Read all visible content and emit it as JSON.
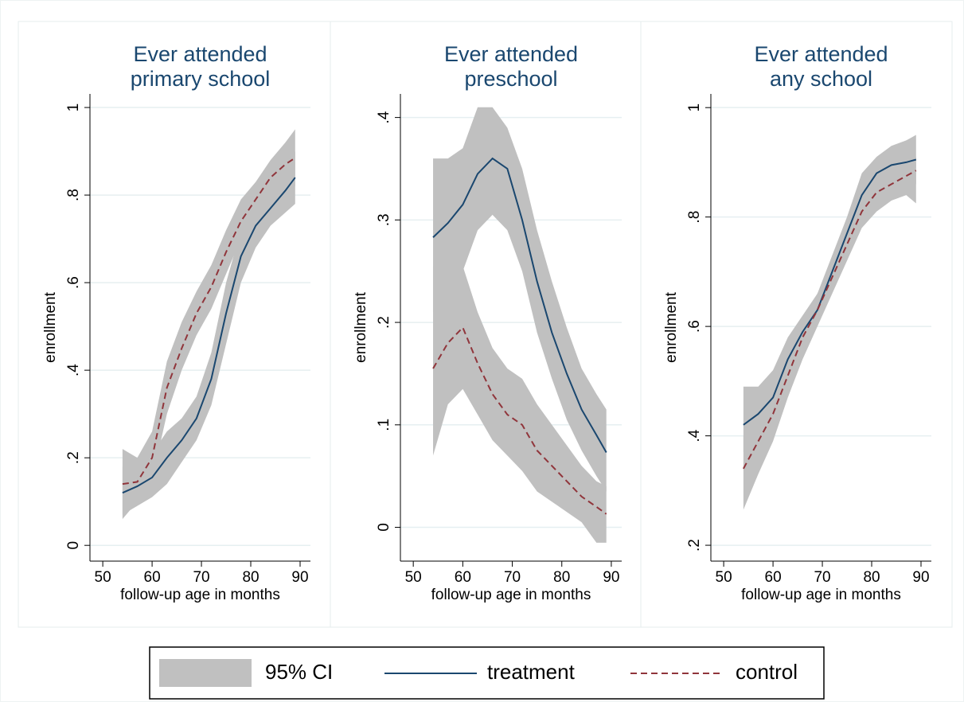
{
  "chart_data": [
    {
      "type": "line",
      "title": [
        "Ever attended",
        "primary school"
      ],
      "x_label": "follow-up age in months",
      "y_label": "enrollment",
      "ci_name": "95% CI",
      "ci_color": "#c0c0c0",
      "x": [
        54,
        57,
        60,
        63,
        66,
        69,
        72,
        75,
        78,
        81,
        84,
        87,
        89
      ],
      "series": [
        {
          "name": "treatment",
          "color": "#1a476f",
          "dash": false,
          "values": [
            0.12,
            0.135,
            0.155,
            0.2,
            0.24,
            0.29,
            0.38,
            0.53,
            0.66,
            0.73,
            0.77,
            0.81,
            0.84
          ],
          "ci_lower": [
            0.07,
            0.09,
            0.11,
            0.14,
            0.19,
            0.24,
            0.32,
            0.46,
            0.6,
            0.68,
            0.73,
            0.76,
            0.78
          ],
          "ci_upper": [
            0.18,
            0.19,
            0.21,
            0.26,
            0.29,
            0.34,
            0.44,
            0.6,
            0.72,
            0.78,
            0.82,
            0.86,
            0.9
          ]
        },
        {
          "name": "control",
          "color": "#90353b",
          "dash": true,
          "values": [
            0.14,
            0.145,
            0.2,
            0.36,
            0.45,
            0.53,
            0.59,
            0.67,
            0.74,
            0.79,
            0.84,
            0.87,
            0.885
          ],
          "ci_lower": [
            0.06,
            0.1,
            0.15,
            0.3,
            0.4,
            0.48,
            0.54,
            0.62,
            0.7,
            0.76,
            0.8,
            0.82,
            0.82
          ],
          "ci_upper": [
            0.22,
            0.2,
            0.26,
            0.42,
            0.51,
            0.58,
            0.64,
            0.72,
            0.79,
            0.83,
            0.88,
            0.92,
            0.95
          ]
        }
      ],
      "xlim": [
        47.4,
        92.1
      ],
      "xticks": [
        50,
        60,
        70,
        80,
        90
      ],
      "ylim": [
        -0.036,
        1.031
      ],
      "yticks": [
        0,
        {
          "value": 0.2,
          "label": ".2"
        },
        {
          "value": 0.4,
          "label": ".4"
        },
        {
          "value": 0.6,
          "label": ".6"
        },
        {
          "value": 0.8,
          "label": ".8"
        },
        1
      ],
      "grid": true
    },
    {
      "type": "line",
      "title": [
        "Ever attended",
        "preschool"
      ],
      "x_label": "follow-up age in months",
      "y_label": "enrollment",
      "ci_name": "95% CI",
      "ci_color": "#c0c0c0",
      "x": [
        54,
        57,
        60,
        63,
        66,
        69,
        72,
        75,
        78,
        81,
        84,
        87,
        89
      ],
      "series": [
        {
          "name": "treatment",
          "color": "#1a476f",
          "dash": false,
          "values": [
            0.283,
            0.297,
            0.315,
            0.345,
            0.36,
            0.35,
            0.3,
            0.24,
            0.19,
            0.15,
            0.115,
            0.09,
            0.073
          ],
          "ci_lower": [
            0.21,
            0.23,
            0.25,
            0.29,
            0.305,
            0.29,
            0.25,
            0.19,
            0.145,
            0.105,
            0.075,
            0.05,
            0.035
          ],
          "ci_upper": [
            0.36,
            0.36,
            0.37,
            0.41,
            0.41,
            0.39,
            0.35,
            0.29,
            0.24,
            0.195,
            0.155,
            0.13,
            0.115
          ]
        },
        {
          "name": "control",
          "color": "#90353b",
          "dash": true,
          "values": [
            0.155,
            0.18,
            0.195,
            0.16,
            0.13,
            0.11,
            0.1,
            0.075,
            0.06,
            0.045,
            0.03,
            0.02,
            0.013
          ],
          "ci_lower": [
            0.07,
            0.12,
            0.135,
            0.11,
            0.085,
            0.07,
            0.055,
            0.035,
            0.025,
            0.015,
            0.005,
            -0.015,
            -0.015
          ],
          "ci_upper": [
            0.255,
            0.24,
            0.255,
            0.21,
            0.175,
            0.155,
            0.145,
            0.12,
            0.1,
            0.08,
            0.06,
            0.045,
            0.04
          ]
        }
      ],
      "xlim": [
        47.4,
        92.1
      ],
      "xticks": [
        50,
        60,
        70,
        80,
        90
      ],
      "ylim": [
        -0.033,
        0.423
      ],
      "yticks": [
        0,
        {
          "value": 0.1,
          "label": ".1"
        },
        {
          "value": 0.2,
          "label": ".2"
        },
        {
          "value": 0.3,
          "label": ".3"
        },
        {
          "value": 0.4,
          "label": ".4"
        }
      ],
      "grid": true
    },
    {
      "type": "line",
      "title": [
        "Ever attended",
        "any school"
      ],
      "x_label": "follow-up age in months",
      "y_label": "enrollment",
      "ci_name": "95% CI",
      "ci_color": "#c0c0c0",
      "x": [
        54,
        57,
        60,
        63,
        66,
        69,
        72,
        75,
        78,
        81,
        84,
        87,
        89
      ],
      "series": [
        {
          "name": "treatment",
          "color": "#1a476f",
          "dash": false,
          "values": [
            0.42,
            0.44,
            0.47,
            0.54,
            0.59,
            0.63,
            0.7,
            0.77,
            0.84,
            0.88,
            0.895,
            0.9,
            0.905
          ],
          "ci_lower": [
            0.37,
            0.39,
            0.43,
            0.5,
            0.56,
            0.61,
            0.67,
            0.74,
            0.8,
            0.84,
            0.855,
            0.86,
            0.86
          ],
          "ci_upper": [
            0.49,
            0.49,
            0.52,
            0.58,
            0.62,
            0.66,
            0.73,
            0.8,
            0.88,
            0.91,
            0.93,
            0.94,
            0.95
          ]
        },
        {
          "name": "control",
          "color": "#90353b",
          "dash": true,
          "values": [
            0.34,
            0.39,
            0.44,
            0.51,
            0.58,
            0.63,
            0.69,
            0.75,
            0.81,
            0.845,
            0.86,
            0.875,
            0.885
          ],
          "ci_lower": [
            0.265,
            0.33,
            0.39,
            0.47,
            0.54,
            0.6,
            0.66,
            0.72,
            0.78,
            0.81,
            0.83,
            0.84,
            0.825
          ],
          "ci_upper": [
            0.4,
            0.44,
            0.49,
            0.55,
            0.61,
            0.66,
            0.72,
            0.78,
            0.84,
            0.875,
            0.89,
            0.905,
            0.91
          ]
        }
      ],
      "xlim": [
        47.4,
        92.1
      ],
      "xticks": [
        50,
        60,
        70,
        80,
        90
      ],
      "ylim": [
        0.171,
        1.025
      ],
      "yticks": [
        {
          "value": 0.2,
          "label": ".2"
        },
        {
          "value": 0.4,
          "label": ".4"
        },
        {
          "value": 0.6,
          "label": ".6"
        },
        {
          "value": 0.8,
          "label": ".8"
        },
        1
      ],
      "grid": true
    }
  ]
}
